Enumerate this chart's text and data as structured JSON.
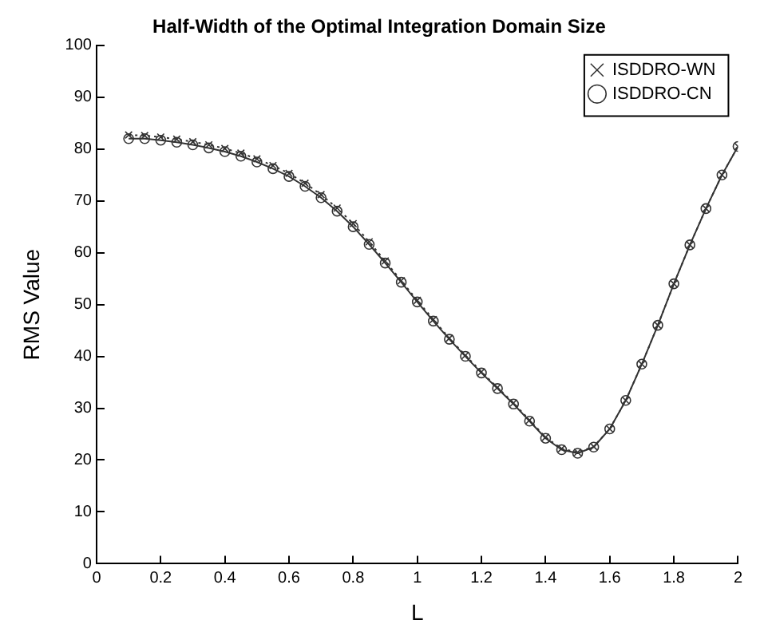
{
  "chart_data": {
    "type": "line",
    "title": "Half-Width of the Optimal Integration Domain Size",
    "xlabel": "L",
    "ylabel": "RMS Value",
    "x": [
      0.1,
      0.15,
      0.2,
      0.25,
      0.3,
      0.35,
      0.4,
      0.45,
      0.5,
      0.55,
      0.6,
      0.65,
      0.7,
      0.75,
      0.8,
      0.85,
      0.9,
      0.95,
      1.0,
      1.05,
      1.1,
      1.15,
      1.2,
      1.25,
      1.3,
      1.35,
      1.4,
      1.45,
      1.5,
      1.55,
      1.6,
      1.65,
      1.7,
      1.75,
      1.8,
      1.85,
      1.9,
      1.95,
      2.0
    ],
    "series": [
      {
        "name": "ISDDRO-WN",
        "color": "#333333",
        "marker": "cross",
        "line_style": "dotted",
        "values": [
          82.7,
          82.6,
          82.3,
          81.9,
          81.4,
          80.8,
          80.1,
          79.2,
          78.1,
          76.8,
          75.3,
          73.4,
          71.2,
          68.6,
          65.6,
          62.1,
          58.4,
          54.6,
          50.8,
          47.1,
          43.5,
          40.2,
          37,
          34,
          31,
          27.7,
          24.4,
          22.2,
          21.5,
          22.6,
          26,
          31.5,
          38.5,
          46,
          54,
          61.5,
          68.5,
          75,
          80.5
        ]
      },
      {
        "name": "ISDDRO-CN",
        "color": "#333333",
        "marker": "circle",
        "line_style": "solid",
        "values": [
          82,
          82,
          81.7,
          81.3,
          80.8,
          80.2,
          79.5,
          78.6,
          77.5,
          76.2,
          74.7,
          72.8,
          70.6,
          68,
          65,
          61.6,
          58,
          54.3,
          50.5,
          46.8,
          43.3,
          40,
          36.8,
          33.8,
          30.8,
          27.5,
          24.2,
          22,
          21.3,
          22.5,
          26,
          31.5,
          38.5,
          46,
          54,
          61.5,
          68.5,
          75,
          80.5
        ]
      }
    ],
    "xlim": [
      0,
      2
    ],
    "xticks": [
      0,
      0.2,
      0.4,
      0.6,
      0.8,
      1,
      1.2,
      1.4,
      1.6,
      1.8,
      2
    ],
    "ylim": [
      0,
      100
    ],
    "yticks": [
      0,
      10,
      20,
      30,
      40,
      50,
      60,
      70,
      80,
      90,
      100
    ],
    "grid": false,
    "legend": "top right"
  }
}
